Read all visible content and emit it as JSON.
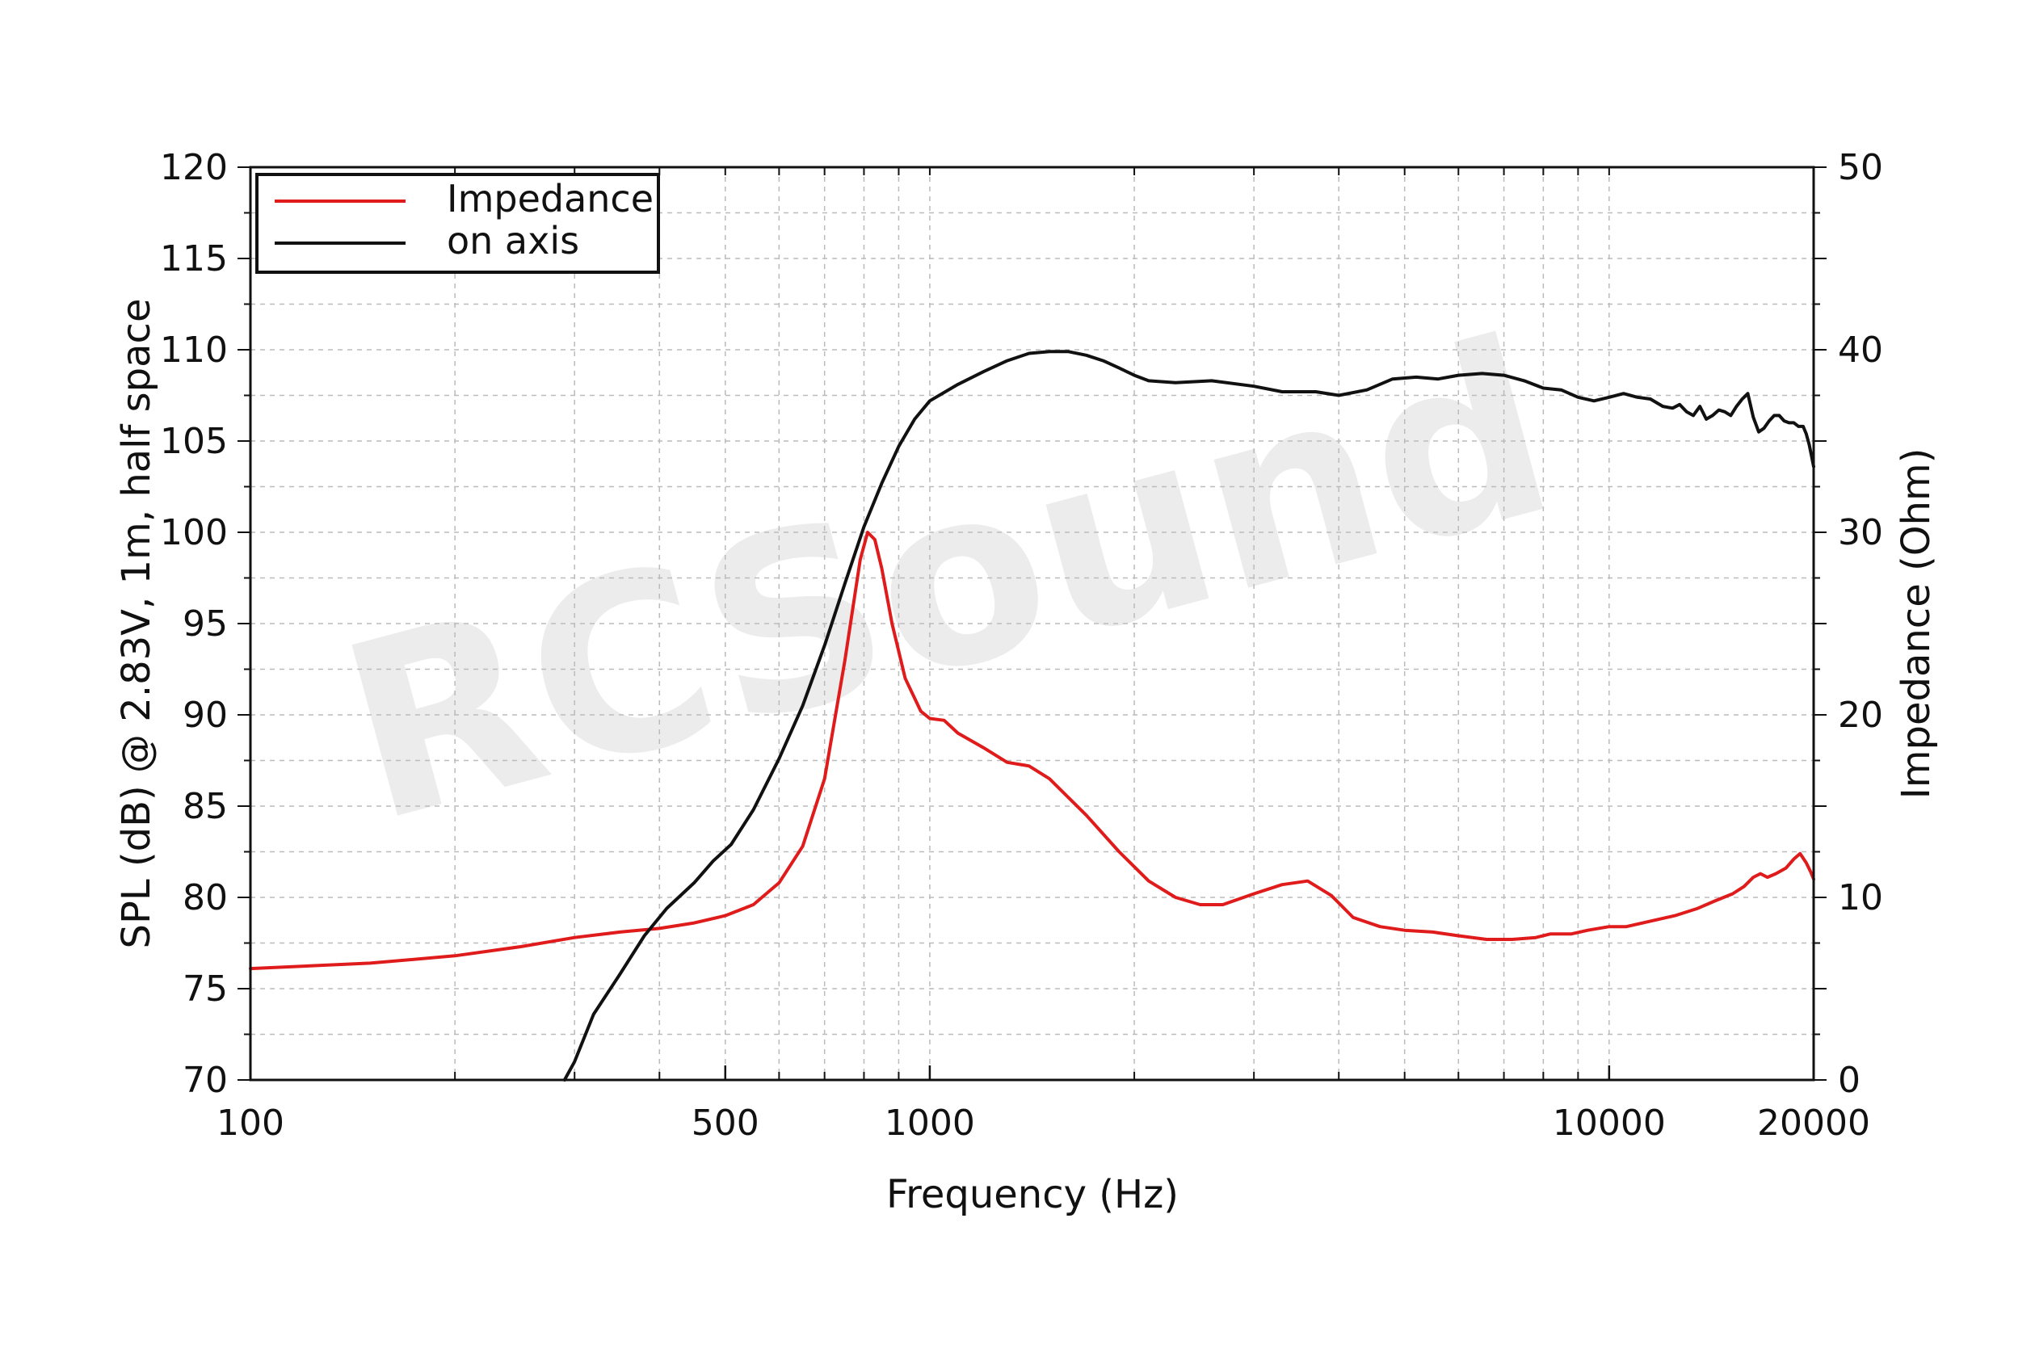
{
  "watermark": "RCSound",
  "chart_data": {
    "type": "line",
    "xlabel": "Frequency (Hz)",
    "ylabel": "SPL (dB) @ 2.83V, 1m, half space",
    "y2label": "Impedance (Ohm)",
    "xscale": "log",
    "xlim": [
      100,
      20000
    ],
    "ylim": [
      70,
      120
    ],
    "y2lim": [
      0,
      50
    ],
    "x_tick_labels": [
      "100",
      "500",
      "1000",
      "10000",
      "20000"
    ],
    "y_tick_labels": [
      "70",
      "75",
      "80",
      "85",
      "90",
      "95",
      "100",
      "105",
      "110",
      "115",
      "120"
    ],
    "y2_tick_labels": [
      "0",
      "10",
      "20",
      "30",
      "40",
      "50"
    ],
    "grid": true,
    "legend_position": "top-left",
    "series": [
      {
        "name": "Impedance",
        "axis": "right",
        "color": "#e01b1b",
        "points": [
          [
            100,
            6.1
          ],
          [
            150,
            6.4
          ],
          [
            200,
            6.8
          ],
          [
            250,
            7.3
          ],
          [
            300,
            7.8
          ],
          [
            350,
            8.1
          ],
          [
            400,
            8.3
          ],
          [
            450,
            8.6
          ],
          [
            500,
            9.0
          ],
          [
            550,
            9.6
          ],
          [
            600,
            10.8
          ],
          [
            650,
            12.8
          ],
          [
            700,
            16.5
          ],
          [
            750,
            23.0
          ],
          [
            790,
            28.5
          ],
          [
            810,
            30.0
          ],
          [
            830,
            29.6
          ],
          [
            850,
            28.0
          ],
          [
            880,
            25.0
          ],
          [
            920,
            22.0
          ],
          [
            970,
            20.2
          ],
          [
            1000,
            19.8
          ],
          [
            1050,
            19.7
          ],
          [
            1100,
            19.0
          ],
          [
            1200,
            18.2
          ],
          [
            1300,
            17.4
          ],
          [
            1400,
            17.2
          ],
          [
            1500,
            16.5
          ],
          [
            1700,
            14.5
          ],
          [
            1900,
            12.5
          ],
          [
            2100,
            10.9
          ],
          [
            2300,
            10.0
          ],
          [
            2500,
            9.6
          ],
          [
            2700,
            9.6
          ],
          [
            3000,
            10.2
          ],
          [
            3300,
            10.7
          ],
          [
            3600,
            10.9
          ],
          [
            3900,
            10.1
          ],
          [
            4200,
            8.9
          ],
          [
            4600,
            8.4
          ],
          [
            5000,
            8.2
          ],
          [
            5500,
            8.1
          ],
          [
            6000,
            7.9
          ],
          [
            6600,
            7.7
          ],
          [
            7200,
            7.7
          ],
          [
            7800,
            7.8
          ],
          [
            8200,
            8.0
          ],
          [
            8800,
            8.0
          ],
          [
            9300,
            8.2
          ],
          [
            10000,
            8.4
          ],
          [
            10600,
            8.4
          ],
          [
            11500,
            8.7
          ],
          [
            12500,
            9.0
          ],
          [
            13500,
            9.4
          ],
          [
            14300,
            9.8
          ],
          [
            15200,
            10.2
          ],
          [
            15800,
            10.6
          ],
          [
            16300,
            11.1
          ],
          [
            16700,
            11.3
          ],
          [
            17100,
            11.1
          ],
          [
            17600,
            11.3
          ],
          [
            18200,
            11.6
          ],
          [
            18700,
            12.1
          ],
          [
            19100,
            12.4
          ],
          [
            19500,
            11.9
          ],
          [
            19800,
            11.4
          ],
          [
            20000,
            11.0
          ]
        ]
      },
      {
        "name": "on axis",
        "axis": "left",
        "color": "#111111",
        "points": [
          [
            290,
            70.0
          ],
          [
            300,
            71.0
          ],
          [
            320,
            73.6
          ],
          [
            350,
            75.8
          ],
          [
            380,
            77.9
          ],
          [
            410,
            79.4
          ],
          [
            450,
            80.8
          ],
          [
            480,
            82.0
          ],
          [
            510,
            82.9
          ],
          [
            550,
            84.8
          ],
          [
            600,
            87.6
          ],
          [
            650,
            90.5
          ],
          [
            700,
            93.8
          ],
          [
            750,
            97.2
          ],
          [
            800,
            100.3
          ],
          [
            850,
            102.7
          ],
          [
            900,
            104.7
          ],
          [
            950,
            106.2
          ],
          [
            1000,
            107.2
          ],
          [
            1100,
            108.1
          ],
          [
            1200,
            108.8
          ],
          [
            1300,
            109.4
          ],
          [
            1400,
            109.8
          ],
          [
            1500,
            109.9
          ],
          [
            1600,
            109.9
          ],
          [
            1700,
            109.7
          ],
          [
            1800,
            109.4
          ],
          [
            1900,
            109.0
          ],
          [
            2000,
            108.6
          ],
          [
            2100,
            108.3
          ],
          [
            2300,
            108.2
          ],
          [
            2600,
            108.3
          ],
          [
            3000,
            108.0
          ],
          [
            3300,
            107.7
          ],
          [
            3700,
            107.7
          ],
          [
            4000,
            107.5
          ],
          [
            4400,
            107.8
          ],
          [
            4800,
            108.4
          ],
          [
            5200,
            108.5
          ],
          [
            5600,
            108.4
          ],
          [
            6000,
            108.6
          ],
          [
            6500,
            108.7
          ],
          [
            7000,
            108.6
          ],
          [
            7500,
            108.3
          ],
          [
            8000,
            107.9
          ],
          [
            8500,
            107.8
          ],
          [
            9000,
            107.4
          ],
          [
            9500,
            107.2
          ],
          [
            10000,
            107.4
          ],
          [
            10500,
            107.6
          ],
          [
            11000,
            107.4
          ],
          [
            11500,
            107.3
          ],
          [
            12000,
            106.9
          ],
          [
            12400,
            106.8
          ],
          [
            12700,
            107.0
          ],
          [
            13000,
            106.6
          ],
          [
            13300,
            106.4
          ],
          [
            13600,
            106.9
          ],
          [
            13900,
            106.2
          ],
          [
            14200,
            106.4
          ],
          [
            14500,
            106.7
          ],
          [
            14800,
            106.6
          ],
          [
            15100,
            106.4
          ],
          [
            15400,
            106.9
          ],
          [
            15700,
            107.3
          ],
          [
            16000,
            107.6
          ],
          [
            16300,
            106.3
          ],
          [
            16600,
            105.5
          ],
          [
            16900,
            105.7
          ],
          [
            17200,
            106.1
          ],
          [
            17500,
            106.4
          ],
          [
            17800,
            106.4
          ],
          [
            18100,
            106.1
          ],
          [
            18400,
            106.0
          ],
          [
            18700,
            106.0
          ],
          [
            19000,
            105.8
          ],
          [
            19300,
            105.8
          ],
          [
            19500,
            105.4
          ],
          [
            19700,
            104.8
          ],
          [
            19850,
            104.2
          ],
          [
            20000,
            103.6
          ]
        ]
      }
    ]
  }
}
